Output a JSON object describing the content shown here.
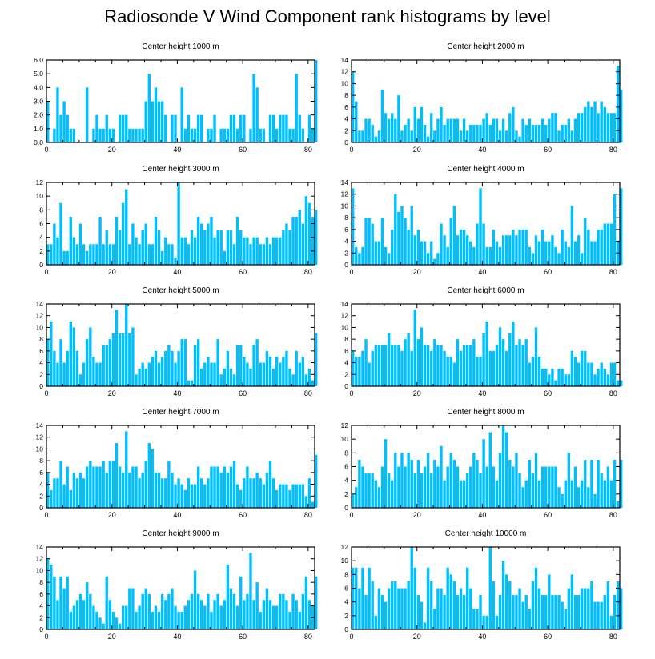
{
  "title": "Radiosonde V Wind Component rank histograms by level",
  "bar_color": "#00bfff",
  "chart_data": [
    {
      "type": "bar",
      "title": "Center height 1000 m",
      "xlim": [
        0,
        82
      ],
      "ylim": [
        0,
        6
      ],
      "yticks": [
        "0.0",
        "1.0",
        "2.0",
        "3.0",
        "4.0",
        "5.0",
        "6.0"
      ],
      "xticks": [
        "0",
        "20",
        "40",
        "60",
        "80"
      ],
      "values": [
        3,
        0,
        1,
        4,
        2,
        3,
        2,
        1,
        1,
        0,
        0,
        0,
        4,
        0,
        1,
        2,
        1,
        1,
        2,
        1,
        1,
        0,
        2,
        2,
        2,
        1,
        1,
        1,
        1,
        1,
        3,
        5,
        3,
        4,
        3,
        3,
        2,
        0,
        2,
        2,
        0,
        4,
        1,
        2,
        1,
        1,
        2,
        2,
        0,
        1,
        1,
        2,
        0,
        1,
        1,
        1,
        2,
        2,
        1,
        2,
        2,
        0,
        1,
        5,
        4,
        1,
        1,
        0,
        2,
        2,
        1,
        2,
        2,
        2,
        1,
        1,
        5,
        2,
        1,
        0,
        2,
        1,
        6
      ]
    },
    {
      "type": "bar",
      "title": "Center height 2000 m",
      "xlim": [
        0,
        82
      ],
      "ylim": [
        0,
        14
      ],
      "yticks": [
        "0",
        "2",
        "4",
        "6",
        "8",
        "10",
        "12",
        "14"
      ],
      "xticks": [
        "0",
        "20",
        "40",
        "60",
        "80"
      ],
      "values": [
        12,
        7,
        2,
        2,
        4,
        4,
        3,
        1,
        2,
        9,
        5,
        4,
        5,
        4,
        8,
        2,
        3,
        4,
        2,
        6,
        4,
        6,
        3,
        1,
        5,
        2,
        4,
        6,
        3,
        4,
        4,
        4,
        4,
        2,
        4,
        2,
        3,
        3,
        3,
        3,
        4,
        5,
        3,
        4,
        4,
        2,
        4,
        2,
        5,
        6,
        2,
        1,
        4,
        3,
        4,
        3,
        3,
        3,
        4,
        3,
        4,
        5,
        5,
        2,
        3,
        3,
        4,
        2,
        4,
        5,
        5,
        6,
        7,
        6,
        7,
        5,
        7,
        6,
        5,
        5,
        5,
        13,
        9
      ]
    },
    {
      "type": "bar",
      "title": "Center height 3000 m",
      "xlim": [
        0,
        82
      ],
      "ylim": [
        0,
        12
      ],
      "yticks": [
        "0",
        "2",
        "4",
        "6",
        "8",
        "10",
        "12"
      ],
      "xticks": [
        "0",
        "20",
        "40",
        "60",
        "80"
      ],
      "values": [
        3,
        3,
        6,
        4,
        9,
        2,
        2,
        7,
        4,
        3,
        6,
        3,
        2,
        3,
        3,
        3,
        7,
        3,
        5,
        3,
        3,
        7,
        5,
        9,
        11,
        3,
        6,
        4,
        3,
        5,
        6,
        3,
        3,
        7,
        5,
        2,
        4,
        3,
        3,
        1,
        12,
        4,
        4,
        3,
        5,
        4,
        7,
        6,
        5,
        6,
        7,
        4,
        5,
        5,
        2,
        5,
        5,
        3,
        7,
        5,
        4,
        4,
        3,
        4,
        4,
        3,
        3,
        4,
        3,
        4,
        4,
        4,
        5,
        6,
        5,
        7,
        7,
        8,
        6,
        10,
        9,
        7,
        8
      ]
    },
    {
      "type": "bar",
      "title": "Center height 4000 m",
      "xlim": [
        0,
        82
      ],
      "ylim": [
        0,
        14
      ],
      "yticks": [
        "0",
        "2",
        "4",
        "6",
        "8",
        "10",
        "12",
        "14"
      ],
      "xticks": [
        "0",
        "20",
        "40",
        "60",
        "80"
      ],
      "values": [
        13,
        3,
        2,
        3,
        8,
        8,
        7,
        4,
        4,
        8,
        3,
        2,
        6,
        12,
        9,
        10,
        8,
        6,
        10,
        5,
        6,
        4,
        4,
        2,
        4,
        1,
        2,
        7,
        5,
        3,
        8,
        10,
        5,
        6,
        6,
        5,
        4,
        3,
        7,
        13,
        7,
        3,
        3,
        6,
        4,
        3,
        5,
        5,
        5,
        6,
        5,
        6,
        6,
        6,
        3,
        2,
        5,
        4,
        6,
        4,
        4,
        5,
        3,
        2,
        6,
        4,
        3,
        10,
        4,
        5,
        2,
        8,
        6,
        4,
        4,
        6,
        6,
        7,
        7,
        7,
        12,
        4,
        13
      ]
    },
    {
      "type": "bar",
      "title": "Center height 5000 m",
      "xlim": [
        0,
        82
      ],
      "ylim": [
        0,
        14
      ],
      "yticks": [
        "0",
        "2",
        "4",
        "6",
        "8",
        "10",
        "12",
        "14"
      ],
      "xticks": [
        "0",
        "20",
        "40",
        "60",
        "80"
      ],
      "values": [
        8,
        11,
        6,
        4,
        8,
        4,
        6,
        11,
        10,
        6,
        2,
        4,
        8,
        10,
        5,
        4,
        4,
        7,
        7,
        8,
        9,
        13,
        9,
        9,
        14,
        9,
        10,
        2,
        3,
        4,
        3,
        4,
        5,
        6,
        4,
        5,
        6,
        7,
        6,
        4,
        6,
        8,
        8,
        1,
        1,
        7,
        8,
        3,
        4,
        5,
        4,
        4,
        8,
        2,
        3,
        6,
        3,
        2,
        7,
        7,
        5,
        4,
        3,
        7,
        8,
        4,
        4,
        6,
        5,
        3,
        5,
        4,
        5,
        6,
        3,
        2,
        6,
        4,
        5,
        2,
        3,
        1,
        9
      ]
    },
    {
      "type": "bar",
      "title": "Center height 6000 m",
      "xlim": [
        0,
        82
      ],
      "ylim": [
        0,
        14
      ],
      "yticks": [
        "0",
        "2",
        "4",
        "6",
        "8",
        "10",
        "12",
        "14"
      ],
      "xticks": [
        "0",
        "20",
        "40",
        "60",
        "80"
      ],
      "values": [
        6,
        5,
        5,
        6,
        8,
        4,
        6,
        7,
        7,
        7,
        7,
        9,
        7,
        7,
        7,
        6,
        8,
        9,
        6,
        13,
        8,
        10,
        7,
        7,
        6,
        8,
        7,
        7,
        6,
        5,
        5,
        4,
        8,
        6,
        7,
        7,
        7,
        8,
        5,
        5,
        9,
        11,
        6,
        6,
        7,
        10,
        8,
        6,
        9,
        11,
        7,
        8,
        7,
        8,
        4,
        5,
        10,
        5,
        3,
        3,
        2,
        3,
        1,
        3,
        3,
        2,
        2,
        6,
        5,
        4,
        6,
        6,
        4,
        4,
        2,
        3,
        4,
        3,
        2,
        4,
        4,
        1,
        1
      ]
    },
    {
      "type": "bar",
      "title": "Center height 7000 m",
      "xlim": [
        0,
        82
      ],
      "ylim": [
        0,
        14
      ],
      "yticks": [
        "0",
        "2",
        "4",
        "6",
        "8",
        "10",
        "12",
        "14"
      ],
      "xticks": [
        "0",
        "20",
        "40",
        "60",
        "80"
      ],
      "values": [
        6,
        3,
        5,
        5,
        8,
        4,
        7,
        3,
        6,
        5,
        6,
        5,
        7,
        8,
        7,
        7,
        7,
        8,
        6,
        8,
        8,
        11,
        7,
        6,
        13,
        6,
        7,
        7,
        5,
        6,
        8,
        11,
        10,
        6,
        6,
        5,
        5,
        8,
        6,
        4,
        5,
        4,
        3,
        5,
        4,
        4,
        7,
        5,
        4,
        5,
        7,
        7,
        7,
        6,
        7,
        6,
        7,
        8,
        4,
        3,
        5,
        7,
        5,
        5,
        6,
        5,
        4,
        6,
        8,
        5,
        3,
        4,
        4,
        4,
        3,
        4,
        4,
        4,
        4,
        2,
        5,
        1,
        9
      ]
    },
    {
      "type": "bar",
      "title": "Center height 8000 m",
      "xlim": [
        0,
        82
      ],
      "ylim": [
        0,
        12
      ],
      "yticks": [
        "0",
        "2",
        "4",
        "6",
        "8",
        "10",
        "12"
      ],
      "xticks": [
        "0",
        "20",
        "40",
        "60",
        "80"
      ],
      "values": [
        2,
        3,
        7,
        6,
        5,
        5,
        5,
        4,
        3,
        6,
        10,
        5,
        4,
        8,
        6,
        8,
        6,
        8,
        7,
        5,
        7,
        5,
        6,
        8,
        5,
        7,
        6,
        9,
        4,
        6,
        8,
        7,
        6,
        4,
        4,
        5,
        6,
        8,
        7,
        5,
        10,
        6,
        11,
        6,
        4,
        8,
        12,
        11,
        7,
        6,
        8,
        5,
        3,
        4,
        7,
        5,
        8,
        4,
        6,
        6,
        6,
        6,
        6,
        3,
        2,
        4,
        8,
        4,
        6,
        3,
        4,
        7,
        3,
        7,
        2,
        7,
        5,
        4,
        6,
        4,
        7,
        1,
        7
      ]
    },
    {
      "type": "bar",
      "title": "Center height 9000 m",
      "xlim": [
        0,
        82
      ],
      "ylim": [
        0,
        14
      ],
      "yticks": [
        "0",
        "2",
        "4",
        "6",
        "8",
        "10",
        "12",
        "14"
      ],
      "xticks": [
        "0",
        "20",
        "40",
        "60",
        "80"
      ],
      "values": [
        12,
        11,
        9,
        5,
        9,
        7,
        9,
        3,
        4,
        5,
        6,
        5,
        8,
        6,
        4,
        3,
        2,
        1,
        9,
        5,
        3,
        2,
        1,
        4,
        4,
        7,
        7,
        3,
        4,
        6,
        7,
        6,
        3,
        4,
        3,
        6,
        5,
        6,
        7,
        4,
        3,
        3,
        4,
        5,
        6,
        10,
        6,
        5,
        4,
        6,
        3,
        5,
        6,
        4,
        5,
        11,
        7,
        6,
        4,
        9,
        5,
        6,
        13,
        5,
        8,
        3,
        5,
        7,
        5,
        4,
        4,
        6,
        6,
        5,
        3,
        6,
        5,
        3,
        6,
        9,
        5,
        4,
        9
      ]
    },
    {
      "type": "bar",
      "title": "Center height 10000 m",
      "xlim": [
        0,
        82
      ],
      "ylim": [
        0,
        12
      ],
      "yticks": [
        "0",
        "2",
        "4",
        "6",
        "8",
        "10",
        "12"
      ],
      "xticks": [
        "0",
        "20",
        "40",
        "60",
        "80"
      ],
      "values": [
        9,
        9,
        6,
        9,
        5,
        9,
        7,
        2,
        6,
        5,
        4,
        6,
        7,
        7,
        6,
        6,
        6,
        7,
        12,
        9,
        5,
        4,
        1,
        9,
        7,
        3,
        6,
        6,
        5,
        9,
        8,
        7,
        5,
        6,
        5,
        9,
        6,
        3,
        3,
        5,
        2,
        2,
        12,
        7,
        2,
        5,
        10,
        8,
        7,
        5,
        5,
        6,
        4,
        5,
        3,
        7,
        9,
        6,
        5,
        5,
        8,
        5,
        5,
        5,
        4,
        3,
        6,
        8,
        5,
        5,
        6,
        6,
        6,
        7,
        4,
        4,
        4,
        5,
        7,
        2,
        5,
        7,
        6
      ]
    }
  ]
}
